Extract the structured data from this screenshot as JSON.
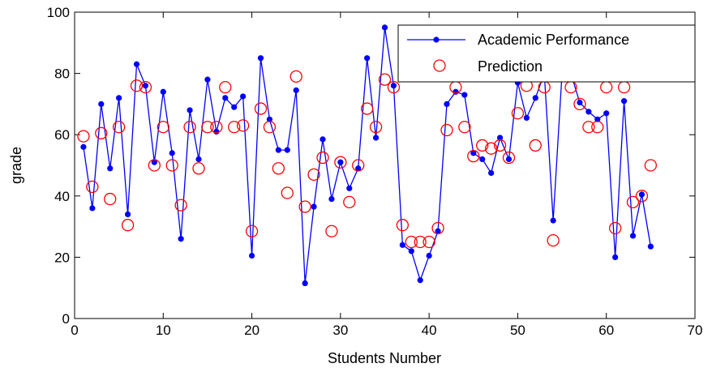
{
  "chart_data": {
    "type": "line",
    "xlabel": "Students Number",
    "ylabel": "grade",
    "xlim": [
      0,
      70
    ],
    "ylim": [
      0,
      100
    ],
    "xticks": [
      "0",
      "10",
      "20",
      "30",
      "40",
      "50",
      "60",
      "70"
    ],
    "yticks": [
      "0",
      "20",
      "40",
      "60",
      "80",
      "100"
    ],
    "grid": false,
    "legend_position": "top-right",
    "series": [
      {
        "name": "Academic Performance",
        "style": "line-with-dots",
        "color": "#0000ff",
        "x": [
          1,
          2,
          3,
          4,
          5,
          6,
          7,
          8,
          9,
          10,
          11,
          12,
          13,
          14,
          15,
          16,
          17,
          18,
          19,
          20,
          21,
          22,
          23,
          24,
          25,
          26,
          27,
          28,
          29,
          30,
          31,
          32,
          33,
          34,
          35,
          36,
          37,
          38,
          39,
          40,
          41,
          42,
          43,
          44,
          45,
          46,
          47,
          48,
          49,
          50,
          51,
          52,
          53,
          54,
          55,
          56,
          57,
          58,
          59,
          60,
          61,
          62,
          63,
          64,
          65
        ],
        "values": [
          56,
          36,
          70,
          49,
          72,
          34,
          83,
          76,
          51,
          74,
          54,
          26,
          68,
          52,
          78,
          61,
          72,
          69,
          72.5,
          20.5,
          85,
          65,
          55,
          55,
          74.5,
          11.5,
          36.5,
          58.5,
          39,
          51,
          42.5,
          49,
          85,
          59,
          95,
          76,
          24,
          22,
          12.5,
          20.5,
          28.5,
          70,
          74,
          73,
          54,
          52,
          47.5,
          59,
          52,
          77,
          65.5,
          72,
          80,
          32,
          80,
          80,
          70.5,
          67.5,
          65,
          67,
          20,
          71,
          27,
          40.5,
          23.5
        ]
      },
      {
        "name": "Prediction",
        "style": "circles",
        "color": "#ff0000",
        "x": [
          1,
          2,
          3,
          4,
          5,
          6,
          7,
          8,
          9,
          10,
          11,
          12,
          13,
          14,
          15,
          16,
          17,
          18,
          19,
          20,
          21,
          22,
          23,
          24,
          25,
          26,
          27,
          28,
          29,
          30,
          31,
          32,
          33,
          34,
          35,
          36,
          37,
          38,
          39,
          40,
          41,
          42,
          43,
          44,
          45,
          46,
          47,
          48,
          49,
          50,
          51,
          52,
          53,
          54,
          55,
          56,
          57,
          58,
          59,
          60,
          61,
          62,
          63,
          64,
          65
        ],
        "values": [
          59.5,
          43,
          60.5,
          39,
          62.5,
          30.5,
          76,
          75.5,
          50,
          62.5,
          50,
          37,
          62.5,
          49,
          62.5,
          62.5,
          75.5,
          62.5,
          63,
          28.5,
          68.5,
          62.5,
          49,
          41,
          79,
          36.5,
          47,
          52.5,
          28.5,
          51,
          38,
          50,
          68.5,
          62.5,
          78,
          75.5,
          30.5,
          25,
          25,
          25,
          29.5,
          61.5,
          75.5,
          62.5,
          53,
          56.5,
          55.5,
          56.5,
          52.5,
          67,
          76,
          56.5,
          75.5,
          25.5,
          80,
          75.5,
          70,
          62.5,
          62.5,
          75.5,
          29.5,
          75.5,
          38,
          40,
          50
        ]
      }
    ]
  }
}
